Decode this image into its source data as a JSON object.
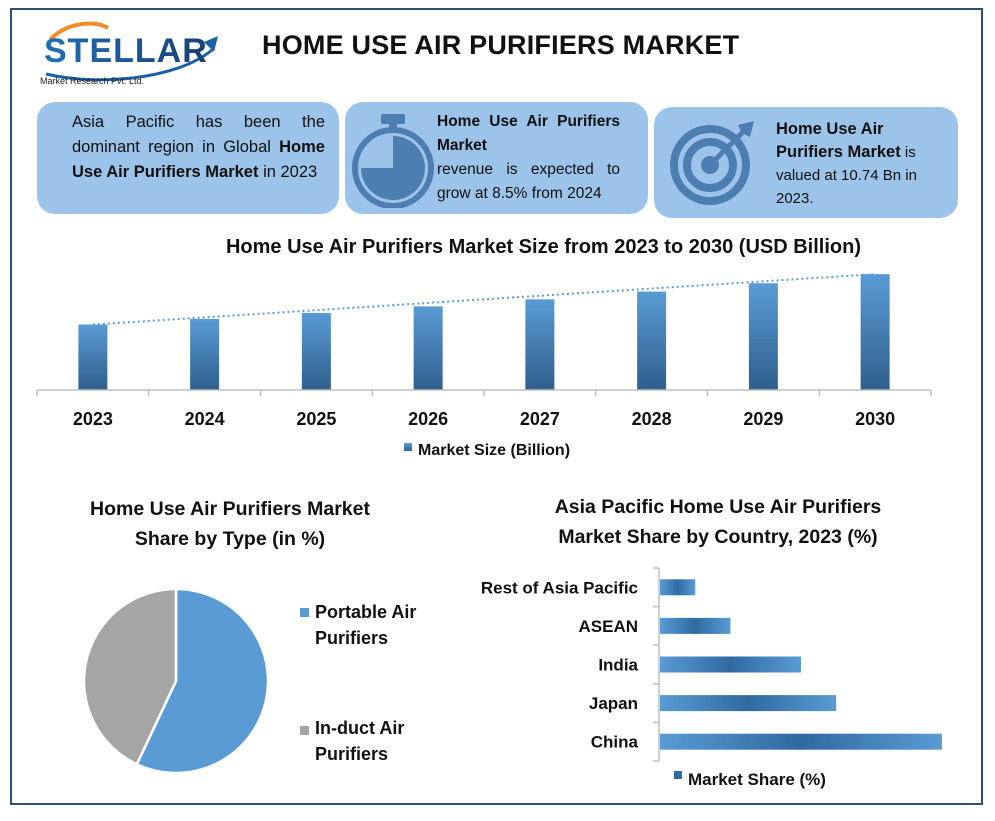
{
  "header": {
    "brand_name": "STELLAR",
    "brand_subtitle": "Market Research Pvt. Ltd.",
    "title": "HOME USE AIR PURIFIERS MARKET"
  },
  "info_boxes": [
    {
      "icon": "map-pin-icon",
      "text_before": "Asia Pacific has been the dominant region in Global",
      "bold": "Home Use Air Purifiers Market",
      "text_after": "in 2023"
    },
    {
      "icon": "stopwatch-icon",
      "bold": "Home Use Air Purifiers Market",
      "text_after": "revenue is expected to grow at 8.5% from 2024"
    },
    {
      "icon": "target-icon",
      "bold": "Home Use Air Purifiers Market",
      "text_after": "is valued at 10.74 Bn in 2023."
    }
  ],
  "colors": {
    "accent_light": "#9cc3ea",
    "bar_gradient_top": "#5a9bd5",
    "bar_gradient_bottom": "#2f5f8c",
    "pie_portable": "#5b9bd5",
    "pie_induct": "#a5a5a5",
    "frame": "#2f4f73"
  },
  "chart_data": [
    {
      "type": "bar",
      "title": "Home Use Air Purifiers Market Size from 2023 to 2030 (USD Billion)",
      "categories": [
        "2023",
        "2024",
        "2025",
        "2026",
        "2027",
        "2028",
        "2029",
        "2030"
      ],
      "series": [
        {
          "name": "Market Size (Billion)",
          "values": [
            10.74,
            11.65,
            12.64,
            13.72,
            14.88,
            16.15,
            17.52,
            19.01
          ]
        }
      ],
      "trendline": "linear-dotted",
      "ylim": [
        0,
        21
      ],
      "legend_position": "bottom",
      "grid": false
    },
    {
      "type": "pie",
      "title": "Home Use Air Purifiers Market Share by Type (in %)",
      "categories": [
        "Portable Air Purifiers",
        "In-duct Air Purifiers"
      ],
      "values": [
        57,
        43
      ],
      "legend_position": "right"
    },
    {
      "type": "bar",
      "orientation": "horizontal",
      "title": "Asia Pacific Home Use Air Purifiers Market Share by Country, 2023 (%)",
      "categories": [
        "Rest of Asia Pacific",
        "ASEAN",
        "India",
        "Japan",
        "China"
      ],
      "series": [
        {
          "name": "Market Share (%)",
          "values": [
            5,
            10,
            20,
            25,
            40
          ]
        }
      ],
      "xlim": [
        0,
        42
      ],
      "legend_position": "bottom",
      "grid": false
    }
  ]
}
